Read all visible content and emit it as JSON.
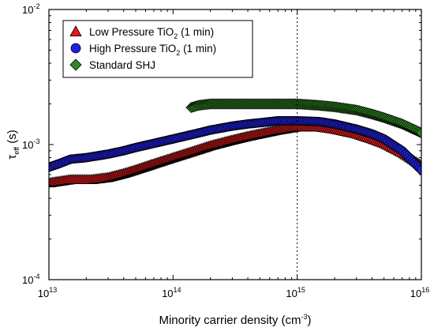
{
  "chart_data": {
    "type": "scatter",
    "x_scale": "log",
    "y_scale": "log",
    "xlim": [
      10000000000000.0,
      1e+16
    ],
    "ylim": [
      0.0001,
      0.01
    ],
    "x_ticks": [
      {
        "value": 10000000000000.0,
        "base": "10",
        "exp": "13"
      },
      {
        "value": 100000000000000.0,
        "base": "10",
        "exp": "14"
      },
      {
        "value": 1000000000000000.0,
        "base": "10",
        "exp": "15"
      },
      {
        "value": 1e+16,
        "base": "10",
        "exp": "16"
      }
    ],
    "y_ticks": [
      {
        "value": 0.0001,
        "base": "10",
        "exp": "-4"
      },
      {
        "value": 0.001,
        "base": "10",
        "exp": "-3"
      },
      {
        "value": 0.01,
        "base": "10",
        "exp": "-2"
      }
    ],
    "xlabel": {
      "main": "Minority carrier density (cm",
      "sup": "-3",
      "tail": ")"
    },
    "ylabel": {
      "main": "τ",
      "sub": "eff",
      "tail": " (s)"
    },
    "reference_line_x": 1000000000000000.0,
    "legend_position": "top-left",
    "series": [
      {
        "name_main": "Low Pressure TiO",
        "name_sub": "2",
        "name_tail": " (1 min)",
        "marker": "triangle",
        "color": "#e31a1c",
        "points": [
          [
            10000000000000.0,
            0.00052
          ],
          [
            15000000000000.0,
            0.00055
          ],
          [
            22000000000000.0,
            0.00055
          ],
          [
            30000000000000.0,
            0.00057
          ],
          [
            40000000000000.0,
            0.00061
          ],
          [
            50000000000000.0,
            0.00065
          ],
          [
            70000000000000.0,
            0.00072
          ],
          [
            100000000000000.0,
            0.0008
          ],
          [
            150000000000000.0,
            0.0009
          ],
          [
            200000000000000.0,
            0.00098
          ],
          [
            300000000000000.0,
            0.00108
          ],
          [
            400000000000000.0,
            0.00115
          ],
          [
            500000000000000.0,
            0.0012
          ],
          [
            700000000000000.0,
            0.00128
          ],
          [
            1000000000000000.0,
            0.00135
          ],
          [
            1500000000000000.0,
            0.00135
          ],
          [
            2000000000000000.0,
            0.0013
          ],
          [
            3000000000000000.0,
            0.0012
          ],
          [
            4000000000000000.0,
            0.0011
          ],
          [
            5000000000000000.0,
            0.00102
          ],
          [
            7000000000000000.0,
            0.00087
          ],
          [
            1e+16,
            0.0007
          ]
        ]
      },
      {
        "name_main": "High Pressure TiO",
        "name_sub": "2",
        "name_tail": " (1 min)",
        "marker": "circle",
        "color": "#1f1fe0",
        "points": [
          [
            10000000000000.0,
            0.00068
          ],
          [
            12000000000000.0,
            0.00072
          ],
          [
            15000000000000.0,
            0.00078
          ],
          [
            20000000000000.0,
            0.0008
          ],
          [
            30000000000000.0,
            0.00085
          ],
          [
            40000000000000.0,
            0.0009
          ],
          [
            50000000000000.0,
            0.00095
          ],
          [
            70000000000000.0,
            0.00102
          ],
          [
            100000000000000.0,
            0.0011
          ],
          [
            150000000000000.0,
            0.0012
          ],
          [
            200000000000000.0,
            0.00128
          ],
          [
            300000000000000.0,
            0.00137
          ],
          [
            400000000000000.0,
            0.00142
          ],
          [
            500000000000000.0,
            0.00145
          ],
          [
            700000000000000.0,
            0.0015
          ],
          [
            1000000000000000.0,
            0.0015
          ],
          [
            1500000000000000.0,
            0.00148
          ],
          [
            2000000000000000.0,
            0.00142
          ],
          [
            3000000000000000.0,
            0.0013
          ],
          [
            4000000000000000.0,
            0.0012
          ],
          [
            5000000000000000.0,
            0.0011
          ],
          [
            7000000000000000.0,
            0.0009
          ],
          [
            1e+16,
            0.00065
          ]
        ]
      },
      {
        "name_main": "Standard SHJ",
        "name_sub": "",
        "name_tail": "",
        "marker": "diamond",
        "color": "#2e8b22",
        "points": [
          [
            140000000000000.0,
            0.00188
          ],
          [
            160000000000000.0,
            0.00195
          ],
          [
            200000000000000.0,
            0.002
          ],
          [
            300000000000000.0,
            0.002
          ],
          [
            400000000000000.0,
            0.002
          ],
          [
            500000000000000.0,
            0.002
          ],
          [
            700000000000000.0,
            0.002
          ],
          [
            1000000000000000.0,
            0.002
          ],
          [
            1500000000000000.0,
            0.00195
          ],
          [
            2000000000000000.0,
            0.0019
          ],
          [
            3000000000000000.0,
            0.0018
          ],
          [
            4000000000000000.0,
            0.00168
          ],
          [
            5000000000000000.0,
            0.00158
          ],
          [
            7000000000000000.0,
            0.00142
          ],
          [
            1e+16,
            0.00122
          ]
        ]
      }
    ]
  }
}
